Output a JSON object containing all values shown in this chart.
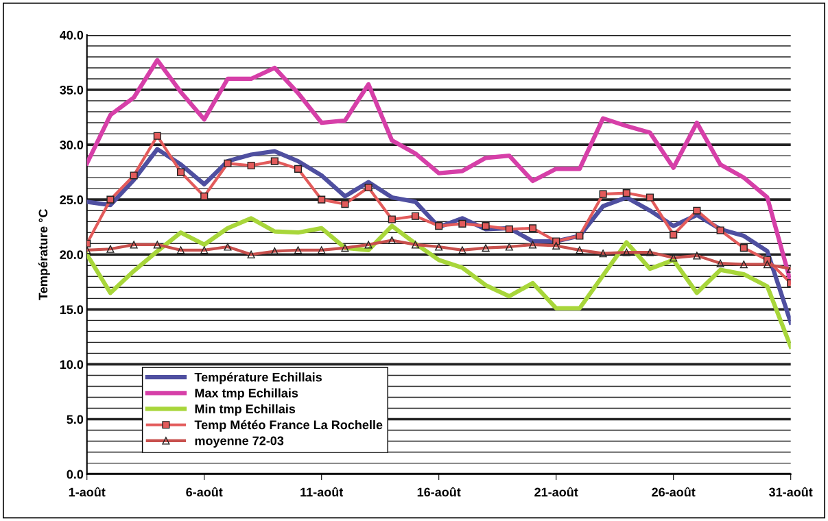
{
  "chart_data": {
    "type": "line",
    "ylabel": "Température °C",
    "categories": [
      "1-août",
      null,
      null,
      null,
      null,
      "6-août",
      null,
      null,
      null,
      null,
      "11-août",
      null,
      null,
      null,
      null,
      "16-août",
      null,
      null,
      null,
      null,
      "21-août",
      null,
      null,
      null,
      null,
      "26-août",
      null,
      null,
      null,
      null,
      "31-août"
    ],
    "ylim": [
      0,
      40
    ],
    "yticks": [
      {
        "value": 0,
        "label": "0.0"
      },
      {
        "value": 1,
        "label": null
      },
      {
        "value": 2,
        "label": null
      },
      {
        "value": 3,
        "label": null
      },
      {
        "value": 4,
        "label": null
      },
      {
        "value": 5,
        "label": "5.0"
      },
      {
        "value": 6,
        "label": null
      },
      {
        "value": 7,
        "label": null
      },
      {
        "value": 8,
        "label": null
      },
      {
        "value": 9,
        "label": null
      },
      {
        "value": 10,
        "label": "10.0"
      },
      {
        "value": 11,
        "label": null
      },
      {
        "value": 12,
        "label": null
      },
      {
        "value": 13,
        "label": null
      },
      {
        "value": 14,
        "label": null
      },
      {
        "value": 15,
        "label": "15.0"
      },
      {
        "value": 16,
        "label": null
      },
      {
        "value": 17,
        "label": null
      },
      {
        "value": 18,
        "label": null
      },
      {
        "value": 19,
        "label": null
      },
      {
        "value": 20,
        "label": "20.0"
      },
      {
        "value": 21,
        "label": null
      },
      {
        "value": 22,
        "label": null
      },
      {
        "value": 23,
        "label": null
      },
      {
        "value": 24,
        "label": null
      },
      {
        "value": 25,
        "label": "25.0"
      },
      {
        "value": 26,
        "label": null
      },
      {
        "value": 27,
        "label": null
      },
      {
        "value": 28,
        "label": null
      },
      {
        "value": 29,
        "label": null
      },
      {
        "value": 30,
        "label": "30.0"
      },
      {
        "value": 31,
        "label": null
      },
      {
        "value": 32,
        "label": null
      },
      {
        "value": 33,
        "label": null
      },
      {
        "value": 34,
        "label": null
      },
      {
        "value": 35,
        "label": "35.0"
      },
      {
        "value": 36,
        "label": null
      },
      {
        "value": 37,
        "label": null
      },
      {
        "value": 38,
        "label": null
      },
      {
        "value": 39,
        "label": null
      },
      {
        "value": 40,
        "label": "40.0"
      }
    ],
    "grid": "y",
    "legend": "bottom left",
    "series": [
      {
        "name": "Température Echillais",
        "color": "#4f4fa0",
        "marker": "none",
        "values": [
          24.8,
          24.5,
          26.8,
          29.6,
          28.2,
          26.4,
          28.5,
          29.1,
          29.4,
          28.5,
          27.2,
          25.3,
          26.6,
          25.2,
          24.8,
          22.5,
          23.3,
          22.3,
          22.4,
          21.2,
          21.2,
          21.7,
          24.4,
          25.2,
          24.0,
          22.6,
          23.6,
          22.3,
          21.7,
          20.3,
          13.8
        ]
      },
      {
        "name": "Max tmp Echillais",
        "color": "#d63fa8",
        "marker": "none",
        "values": [
          28.3,
          32.7,
          34.3,
          37.7,
          34.8,
          32.3,
          36.0,
          36.0,
          37.0,
          34.7,
          32.0,
          32.2,
          35.5,
          30.4,
          29.2,
          27.4,
          27.6,
          28.8,
          29.0,
          26.7,
          27.8,
          27.8,
          32.4,
          31.7,
          31.1,
          27.9,
          32.0,
          28.2,
          27.0,
          25.2,
          17.5
        ]
      },
      {
        "name": "Min tmp Echillais",
        "color": "#a8d63a",
        "marker": "none",
        "values": [
          20.0,
          16.5,
          18.5,
          20.3,
          22.0,
          20.9,
          22.4,
          23.3,
          22.1,
          22.0,
          22.4,
          20.6,
          20.4,
          22.6,
          21.0,
          19.5,
          18.8,
          17.2,
          16.2,
          17.4,
          15.1,
          15.1,
          18.1,
          21.1,
          18.7,
          19.5,
          16.5,
          18.6,
          18.2,
          17.1,
          11.6
        ]
      },
      {
        "name": "Temp Météo France La Rochelle",
        "color": "#e35b5b",
        "marker": "square",
        "values": [
          21.0,
          25.0,
          27.2,
          30.8,
          27.5,
          25.3,
          28.3,
          28.1,
          28.5,
          27.8,
          25.0,
          24.6,
          26.1,
          23.2,
          23.5,
          22.6,
          22.8,
          22.6,
          22.3,
          22.4,
          21.2,
          21.7,
          25.5,
          25.6,
          25.2,
          21.8,
          24.0,
          22.2,
          20.6,
          19.5,
          17.4
        ]
      },
      {
        "name": "moyenne 72-03",
        "color": "#c8504d",
        "marker": "triangle",
        "values": [
          20.4,
          20.5,
          20.9,
          20.9,
          20.4,
          20.4,
          20.7,
          20.0,
          20.3,
          20.4,
          20.4,
          20.6,
          20.9,
          21.3,
          20.9,
          20.7,
          20.4,
          20.6,
          20.7,
          20.9,
          20.8,
          20.4,
          20.1,
          20.2,
          20.2,
          19.7,
          19.9,
          19.2,
          19.1,
          19.1,
          18.7
        ]
      }
    ]
  }
}
